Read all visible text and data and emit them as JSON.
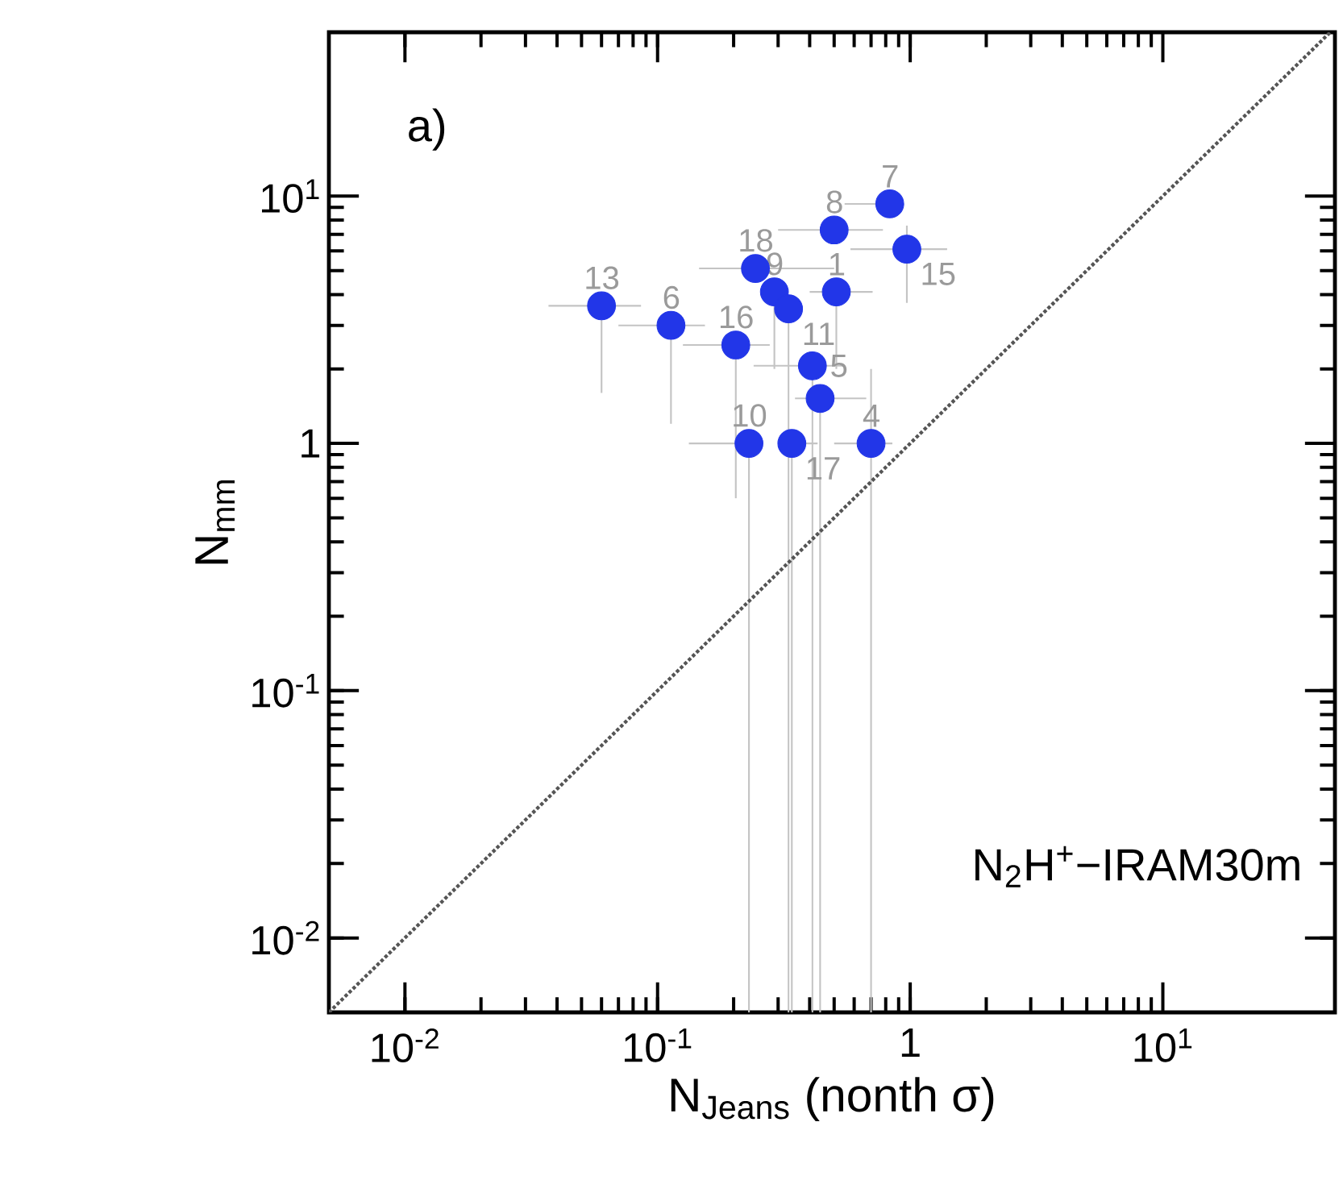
{
  "chart_data": {
    "type": "scatter",
    "xlabel": "N$_{Jeans}$ (nonth σ)",
    "ylabel": "N$_{mm}$",
    "log": "xy",
    "marker": "circle",
    "xlim": [
      0.005,
      48
    ],
    "ylim": [
      0.005,
      46
    ],
    "xticks": [
      {
        "value": 0.01,
        "label": "10$^{-2}$"
      },
      {
        "value": 0.1,
        "label": "10$^{-1}$"
      },
      1,
      {
        "value": 10,
        "label": "10$^{1}$"
      }
    ],
    "yticks": [
      {
        "value": 0.01,
        "label": "10$^{-2}$"
      },
      {
        "value": 0.1,
        "label": "10$^{-1}$"
      },
      1,
      {
        "value": 10,
        "label": "10$^{1}$"
      }
    ],
    "series": [
      {
        "color": "#2236e8",
        "x": [
          0.06,
          0.113,
          0.204,
          0.244,
          0.29,
          0.33,
          0.5,
          0.83,
          0.97,
          0.51,
          0.41,
          0.44,
          0.23,
          0.34,
          0.7
        ],
        "values": [
          3.6,
          3.0,
          2.5,
          5.1,
          4.1,
          3.5,
          7.3,
          9.3,
          6.1,
          4.1,
          2.06,
          1.52,
          1.0,
          1.0,
          1.0
        ],
        "xerrors": [
          [
            0.037,
            0.086
          ],
          [
            0.07,
            0.154
          ],
          [
            0.126,
            0.278
          ],
          [
            0.146,
            0.5
          ],
          null,
          null,
          [
            0.3,
            0.78
          ],
          [
            0.55,
            0.94
          ],
          [
            0.58,
            1.4
          ],
          [
            0.4,
            0.71
          ],
          [
            0.24,
            0.55
          ],
          [
            0.35,
            0.67
          ],
          [
            0.133,
            0.23
          ],
          [
            0.34,
            0.43
          ],
          [
            0.5,
            0.85
          ]
        ],
        "errors": [
          [
            1.6,
            3.6
          ],
          [
            1.2,
            3.0
          ],
          [
            0.6,
            2.5
          ],
          null,
          [
            2.0,
            4.1
          ],
          [
            0.005,
            3.5
          ],
          null,
          null,
          [
            3.7,
            7.6
          ],
          [
            2.0,
            4.1
          ],
          [
            0.005,
            2.06
          ],
          [
            0.005,
            1.52
          ],
          [
            0.005,
            1.0
          ],
          [
            0.005,
            1.0
          ],
          [
            0.005,
            2.0
          ]
        ]
      },
      {
        "type": "line",
        "color": "#555555",
        "line_style": "dotted",
        "marker": "none",
        "x": [
          0.005,
          46
        ],
        "values": [
          0.005,
          46
        ]
      }
    ],
    "annotations": [
      "a)",
      "N$_{2}$H$^{+}$−IRAM30m",
      {
        "text": "13",
        "x": 0.06,
        "y": 3.6
      },
      {
        "text": "6",
        "x": 0.113,
        "y": 3.0
      },
      {
        "text": "16",
        "x": 0.204,
        "y": 2.5
      },
      {
        "text": "18",
        "x": 0.244,
        "y": 5.1
      },
      {
        "text": "9",
        "x": 0.29,
        "y": 4.1
      },
      {
        "text": "11",
        "x": 0.33,
        "y": 3.5
      },
      {
        "text": "8",
        "x": 0.5,
        "y": 7.3
      },
      {
        "text": "7",
        "x": 0.83,
        "y": 9.3
      },
      {
        "text": "15",
        "x": 0.97,
        "y": 6.1
      },
      {
        "text": "1",
        "x": 0.51,
        "y": 4.1
      },
      {
        "text": "5",
        "x": 0.41,
        "y": 2.06
      },
      {
        "text": "10",
        "x": 0.23,
        "y": 1.0
      },
      {
        "text": "17",
        "x": 0.34,
        "y": 1.0
      },
      {
        "text": "4",
        "x": 0.7,
        "y": 1.0
      }
    ]
  }
}
